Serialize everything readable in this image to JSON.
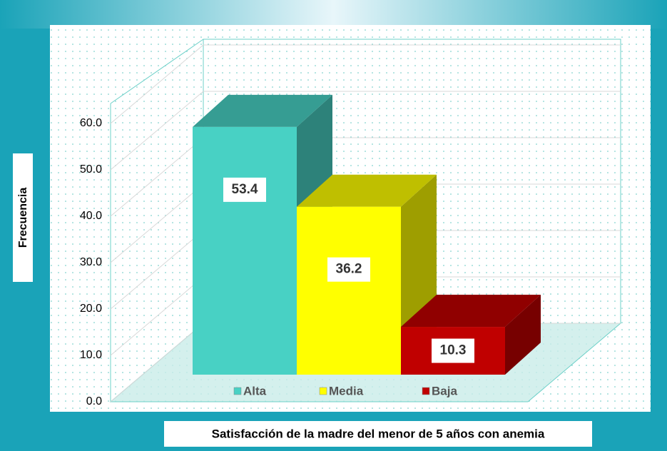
{
  "chart_data": {
    "type": "bar3d",
    "categories": [
      "Alta",
      "Media",
      "Baja"
    ],
    "series": [
      {
        "name": "Frecuencia",
        "values": [
          53.4,
          36.2,
          10.3
        ]
      }
    ],
    "colors": [
      "#48d1c4",
      "#ffff00",
      "#c00000"
    ],
    "x_label": "Satisfacción de la madre del menor de 5 años con anemia",
    "y_label": "Frecuencia",
    "ylim": [
      0,
      60
    ],
    "yticks": [
      {
        "value": 0,
        "label": "0.0"
      },
      {
        "value": 10,
        "label": "10.0"
      },
      {
        "value": 20,
        "label": "20.0"
      },
      {
        "value": 30,
        "label": "30.0"
      },
      {
        "value": 40,
        "label": "40.0"
      },
      {
        "value": 50,
        "label": "50.0"
      },
      {
        "value": 60,
        "label": "60.0"
      }
    ],
    "grid": true,
    "legend": "bottom"
  }
}
